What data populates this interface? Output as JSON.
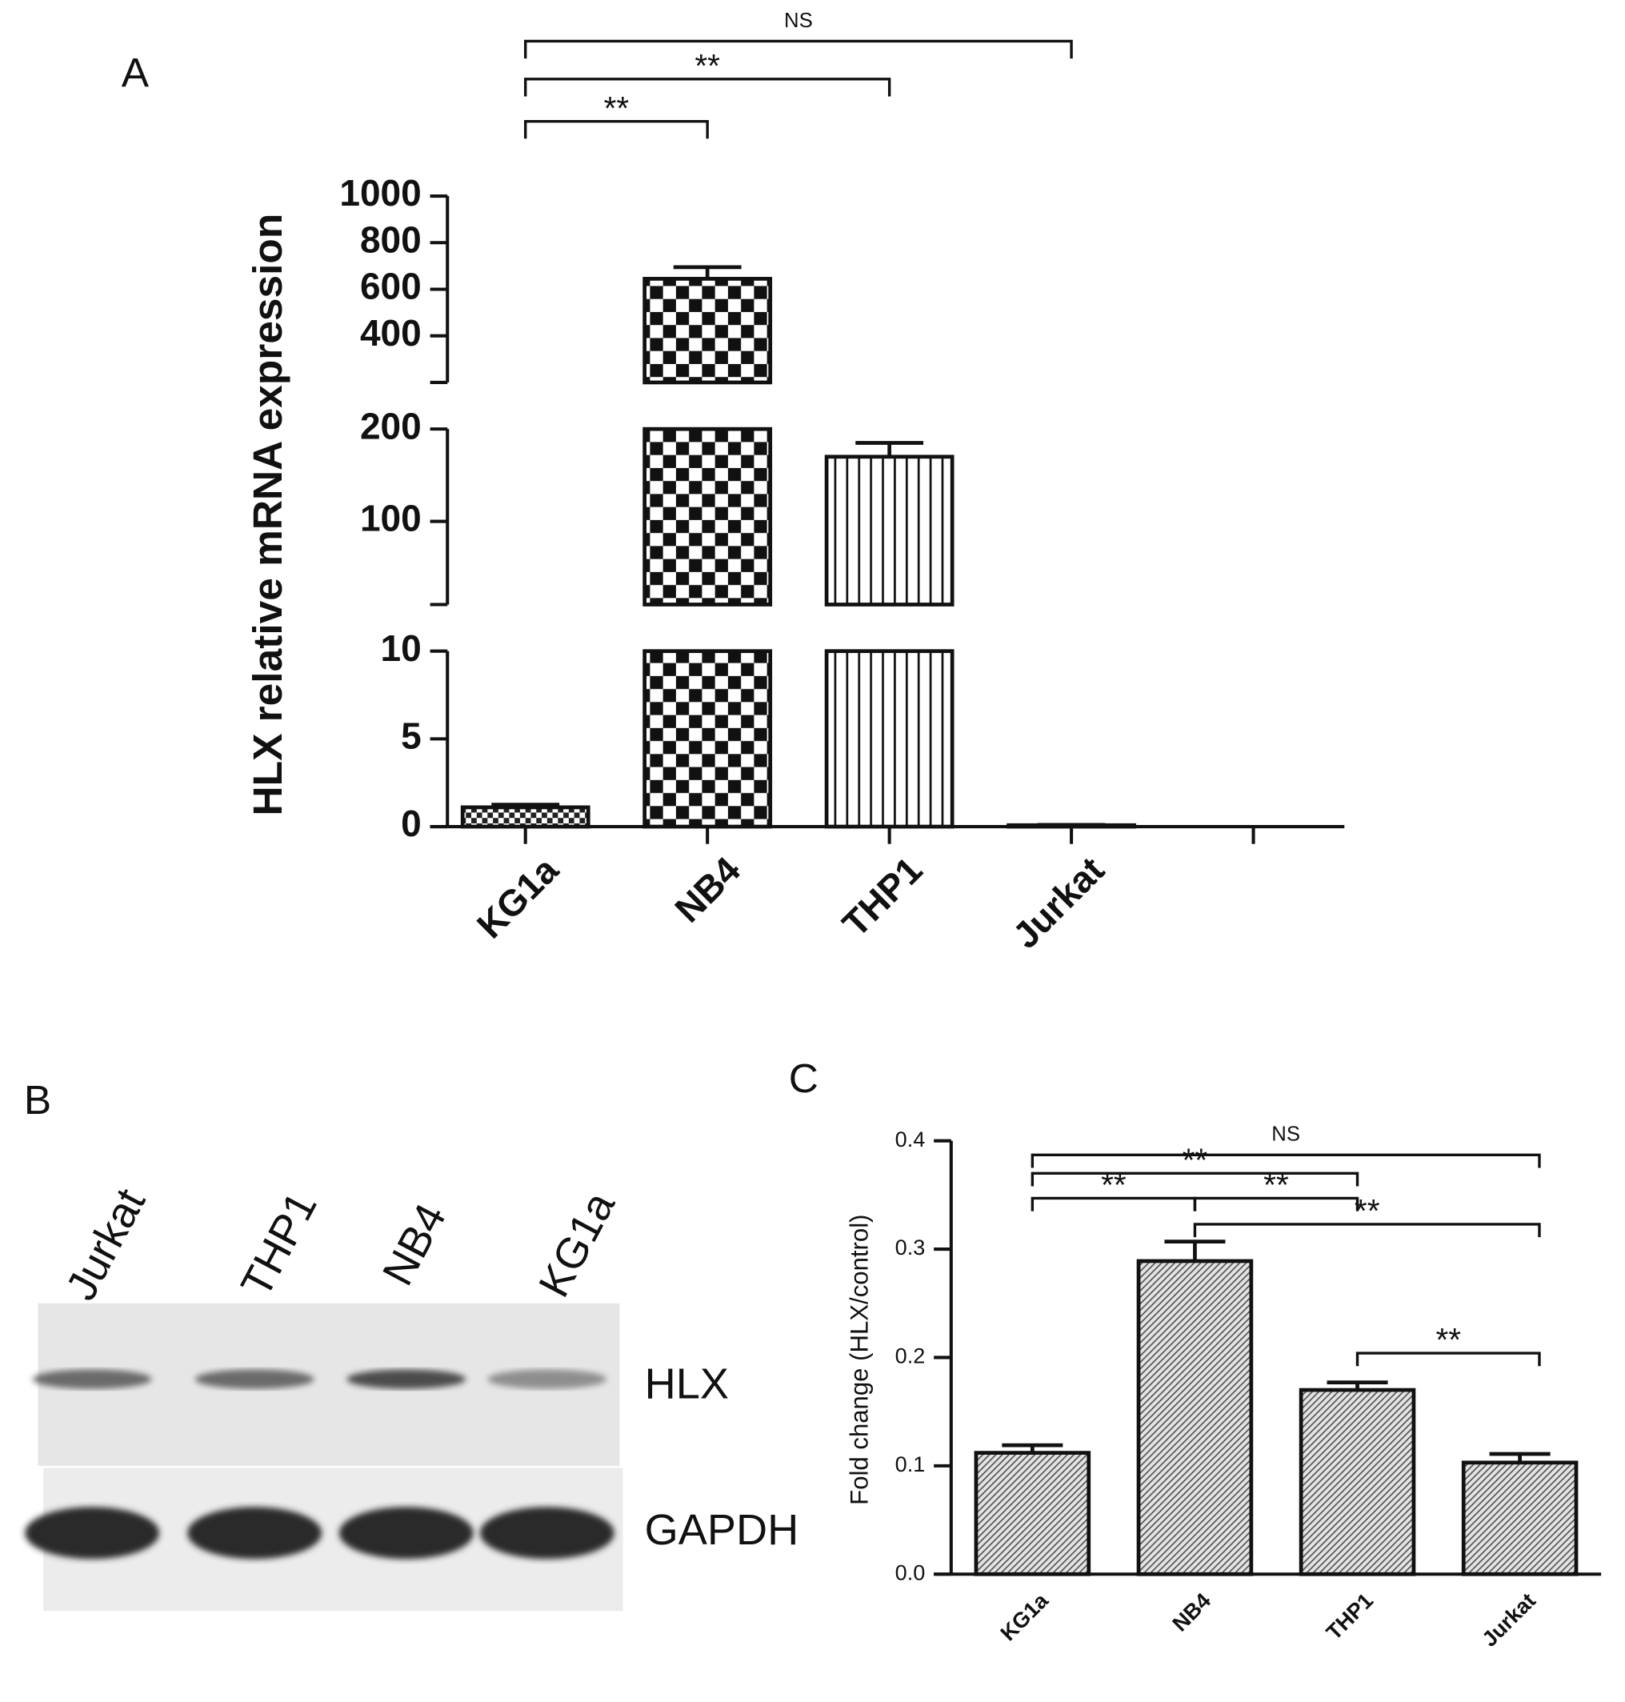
{
  "chart_data": [
    {
      "panel": "A",
      "type": "bar",
      "ylabel": "HLX relative mRNA expression",
      "categories": [
        "KG1a",
        "NB4",
        "THP1",
        "Jurkat",
        null
      ],
      "values": [
        1.1,
        645,
        170,
        0.08,
        null
      ],
      "errors": [
        0.15,
        50,
        15,
        0.02,
        null
      ],
      "patterns": [
        "fine-check",
        "check",
        "vertical-stripes",
        "none",
        null
      ],
      "axis_segments": [
        {
          "ylim": [
            0,
            10
          ],
          "yticks": [
            0,
            5,
            10
          ]
        },
        {
          "ylim": [
            10,
            200
          ],
          "yticks": [
            100,
            200
          ]
        },
        {
          "ylim": [
            200,
            1000
          ],
          "yticks": [
            400,
            600,
            800,
            1000
          ]
        }
      ],
      "significance": [
        {
          "from": 0,
          "to": 1,
          "label": "**"
        },
        {
          "from": 0,
          "to": 2,
          "label": "**"
        },
        {
          "from": 0,
          "to": 3,
          "label": "NS"
        }
      ]
    },
    {
      "panel": "C",
      "type": "bar",
      "ylabel": "Fold change (HLX/control)",
      "categories": [
        "KG1a",
        "NB4",
        "THP1",
        "Jurkat"
      ],
      "values": [
        0.112,
        0.289,
        0.17,
        0.103
      ],
      "errors": [
        0.007,
        0.018,
        0.007,
        0.008
      ],
      "pattern": "hatch",
      "ylim": [
        0,
        0.4
      ],
      "yticks": [
        {
          "value": 0,
          "label": "0.0"
        },
        0.1,
        0.2,
        0.3,
        0.4
      ],
      "significance": [
        {
          "from": 0,
          "to": 3,
          "label": "NS"
        },
        {
          "from": 0,
          "to": 2,
          "label": "**"
        },
        {
          "from": 0,
          "to": 1,
          "label": "**"
        },
        {
          "from": 1,
          "to": 2,
          "label": "**"
        },
        {
          "from": 1,
          "to": 3,
          "label": "**"
        },
        {
          "from": 2,
          "to": 3,
          "label": "**"
        }
      ]
    }
  ],
  "blot": {
    "panel": "B",
    "lanes": [
      "Jurkat",
      "THP1",
      "NB4",
      "KG1a"
    ],
    "bands": [
      "HLX",
      "GAPDH"
    ]
  }
}
